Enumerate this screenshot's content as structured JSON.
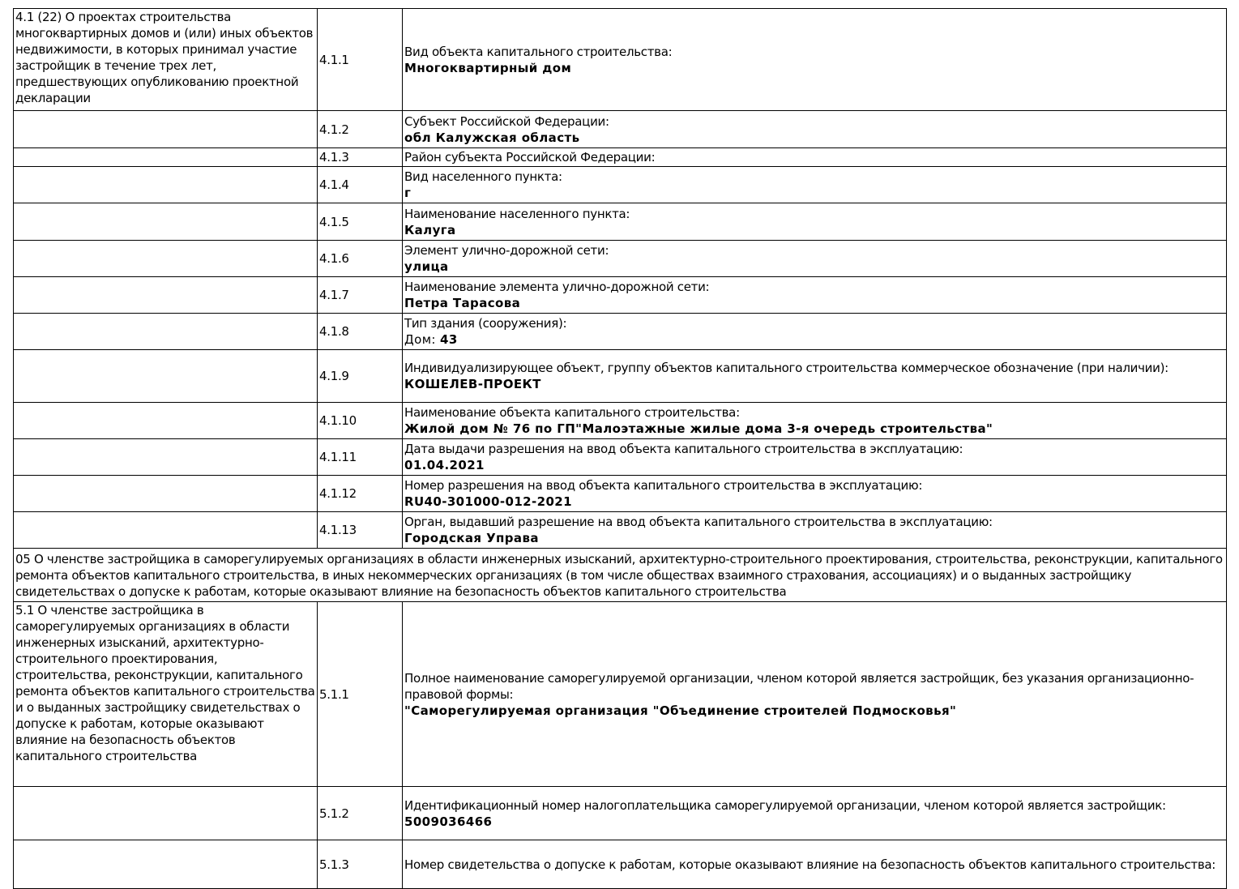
{
  "rows": [
    {
      "section": "4.1 (22) О проектах строительства многоквартирных домов и (или) иных объектов недвижимости, в которых принимал участие застройщик в течение трех лет, предшествующих опубликованию проектной декларации",
      "num": "4.1.1",
      "label": "Вид объекта капитального строительства:",
      "value": "Многоквартирный дом"
    },
    {
      "section": "",
      "num": "4.1.2",
      "label": "Субъект Российской Федерации:",
      "value": "обл Калужская область"
    },
    {
      "section": "",
      "num": "4.1.3",
      "label": "Район субъекта Российской Федерации:",
      "value": ""
    },
    {
      "section": "",
      "num": "4.1.4",
      "label": "Вид населенного пункта:",
      "value": "г"
    },
    {
      "section": "",
      "num": "4.1.5",
      "label": "Наименование населенного пункта:",
      "value": "Калуга"
    },
    {
      "section": "",
      "num": "4.1.6",
      "label": "Элемент улично-дорожной сети:",
      "value": "улица"
    },
    {
      "section": "",
      "num": "4.1.7",
      "label": "Наименование элемента улично-дорожной сети:",
      "value": "Петра Тарасова"
    },
    {
      "section": "",
      "num": "4.1.8",
      "label": "Тип здания (сооружения):",
      "value_prefix": "Дом: ",
      "value": "43"
    },
    {
      "section": "",
      "num": "4.1.9",
      "label": "Индивидуализирующее объект, группу объектов капитального строительства коммерческое обозначение (при наличии):",
      "value": "КОШЕЛЕВ-ПРОЕКТ"
    },
    {
      "section": "",
      "num": "4.1.10",
      "label": "Наименование объекта капитального строительства:",
      "value": "Жилой дом № 76 по ГП\"Малоэтажные жилые дома 3-я очередь строительства\""
    },
    {
      "section": "",
      "num": "4.1.11",
      "label": "Дата выдачи разрешения на ввод объекта капитального строительства в эксплуатацию:",
      "value": "01.04.2021"
    },
    {
      "section": "",
      "num": "4.1.12",
      "label": "Номер разрешения на ввод объекта капитального строительства в эксплуатацию:",
      "value": "RU40-301000-012-2021"
    },
    {
      "section": "",
      "num": "4.1.13",
      "label": "Орган, выдавший разрешение на ввод объекта капитального строительства в эксплуатацию:",
      "value": "Городская Управа"
    },
    {
      "header": "05 О членстве застройщика в саморегулируемых организациях в области инженерных изысканий, архитектурно-строительного проектирования, строительства, реконструкции, капитального ремонта объектов капитального строительства, в иных некоммерческих организациях (в том числе обществах взаимного страхования, ассоциациях) и о выданных застройщику свидетельствах о допуске к работам, которые оказывают влияние на безопасность объектов капитального строительства"
    },
    {
      "section": "5.1 О членстве застройщика в саморегулируемых организациях в области инженерных изысканий, архитектурно-строительного проектирования, строительства, реконструкции, капитального ремонта объектов капитального строительства и о выданных застройщику свидетельствах о допуске к работам, которые оказывают влияние на безопасность объектов капитального строительства",
      "num": "5.1.1",
      "label": "Полное наименование саморегулируемой организации, членом которой является застройщик, без указания организационно-правовой формы:",
      "value": "\"Саморегулируемая организация \"Объединение строителей Подмосковья\""
    },
    {
      "section": "",
      "num": "5.1.2",
      "label": "Идентификационный номер налогоплательщика саморегулируемой организации, членом которой является застройщик:",
      "value": "5009036466"
    },
    {
      "section": "",
      "num": "5.1.3",
      "label": "Номер свидетельства о допуске к работам, которые оказывают влияние на безопасность объектов капитального строительства:",
      "value": ""
    }
  ]
}
